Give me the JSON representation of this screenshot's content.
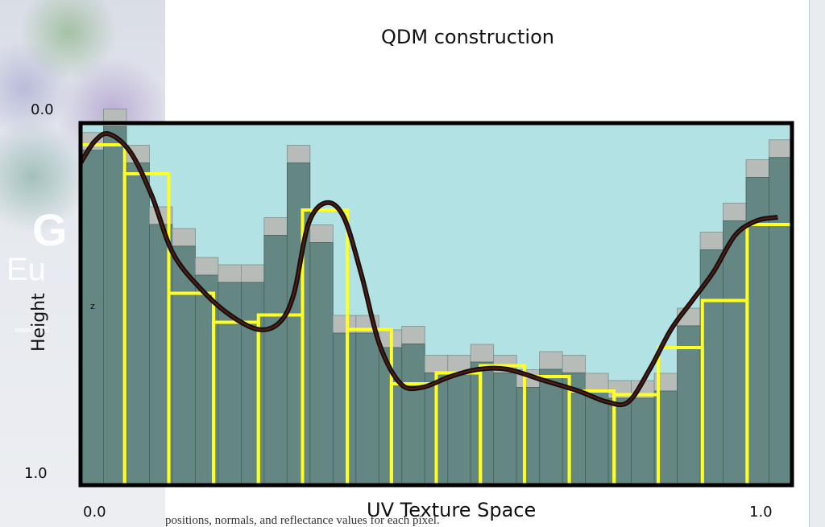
{
  "window": {
    "background": "#ffffff"
  },
  "branding": {
    "logo_text": "G",
    "logo_text2": "Eu",
    "url_text": "www.GDC"
  },
  "caption_fragment": "positions, normals, and reflectance values for each pixel.",
  "colors": {
    "plot_background": "#b2e2e3",
    "bar_fill": "#648783",
    "bar_top": "#b7bcb9",
    "bin_outline": "#ffff22",
    "curve": "#111111",
    "curve_inner": "#5a1a10",
    "frame": "#000000"
  },
  "chart_data": {
    "type": "bar",
    "title": "QDM construction",
    "xlabel": "UV Texture Space",
    "ylabel": "Height",
    "annotation": "z",
    "x_ticks": [
      "0.0",
      "1.0"
    ],
    "y_ticks": [
      "0.0",
      "1.0"
    ],
    "ylim_top_to_bottom": [
      0.0,
      1.0
    ],
    "xlim": [
      0.0,
      1.0
    ],
    "grid": false,
    "legend": "none",
    "fine_heights": [
      0.075,
      0.01,
      0.11,
      0.28,
      0.34,
      0.42,
      0.44,
      0.44,
      0.31,
      0.11,
      0.33,
      0.58,
      0.58,
      0.62,
      0.61,
      0.69,
      0.69,
      0.66,
      0.69,
      0.73,
      0.68,
      0.69,
      0.74,
      0.76,
      0.76,
      0.74,
      0.56,
      0.35,
      0.27,
      0.15,
      0.095
    ],
    "max_bins": [
      {
        "x_range": [
          0.0,
          0.062
        ],
        "height": 0.06
      },
      {
        "x_range": [
          0.062,
          0.124
        ],
        "height": 0.14
      },
      {
        "x_range": [
          0.124,
          0.187
        ],
        "height": 0.47
      },
      {
        "x_range": [
          0.187,
          0.25
        ],
        "height": 0.55
      },
      {
        "x_range": [
          0.25,
          0.312
        ],
        "height": 0.53
      },
      {
        "x_range": [
          0.312,
          0.375
        ],
        "height": 0.24
      },
      {
        "x_range": [
          0.375,
          0.437
        ],
        "height": 0.57
      },
      {
        "x_range": [
          0.437,
          0.5
        ],
        "height": 0.72
      },
      {
        "x_range": [
          0.5,
          0.562
        ],
        "height": 0.69
      },
      {
        "x_range": [
          0.562,
          0.624
        ],
        "height": 0.67
      },
      {
        "x_range": [
          0.624,
          0.687
        ],
        "height": 0.7
      },
      {
        "x_range": [
          0.687,
          0.75
        ],
        "height": 0.74
      },
      {
        "x_range": [
          0.75,
          0.812
        ],
        "height": 0.75
      },
      {
        "x_range": [
          0.812,
          0.874
        ],
        "height": 0.62
      },
      {
        "x_range": [
          0.874,
          0.937
        ],
        "height": 0.49
      },
      {
        "x_range": [
          0.937,
          1.0
        ],
        "height": 0.28
      }
    ],
    "curve_points": [
      [
        0.0,
        0.11
      ],
      [
        0.02,
        0.05
      ],
      [
        0.04,
        0.03
      ],
      [
        0.07,
        0.08
      ],
      [
        0.1,
        0.2
      ],
      [
        0.13,
        0.36
      ],
      [
        0.17,
        0.46
      ],
      [
        0.21,
        0.53
      ],
      [
        0.25,
        0.57
      ],
      [
        0.28,
        0.55
      ],
      [
        0.3,
        0.47
      ],
      [
        0.32,
        0.28
      ],
      [
        0.345,
        0.22
      ],
      [
        0.37,
        0.26
      ],
      [
        0.395,
        0.42
      ],
      [
        0.42,
        0.61
      ],
      [
        0.45,
        0.72
      ],
      [
        0.48,
        0.73
      ],
      [
        0.52,
        0.7
      ],
      [
        0.56,
        0.68
      ],
      [
        0.6,
        0.68
      ],
      [
        0.65,
        0.71
      ],
      [
        0.7,
        0.74
      ],
      [
        0.74,
        0.77
      ],
      [
        0.77,
        0.77
      ],
      [
        0.8,
        0.68
      ],
      [
        0.83,
        0.57
      ],
      [
        0.86,
        0.49
      ],
      [
        0.89,
        0.41
      ],
      [
        0.92,
        0.31
      ],
      [
        0.95,
        0.27
      ],
      [
        0.98,
        0.26
      ]
    ]
  }
}
